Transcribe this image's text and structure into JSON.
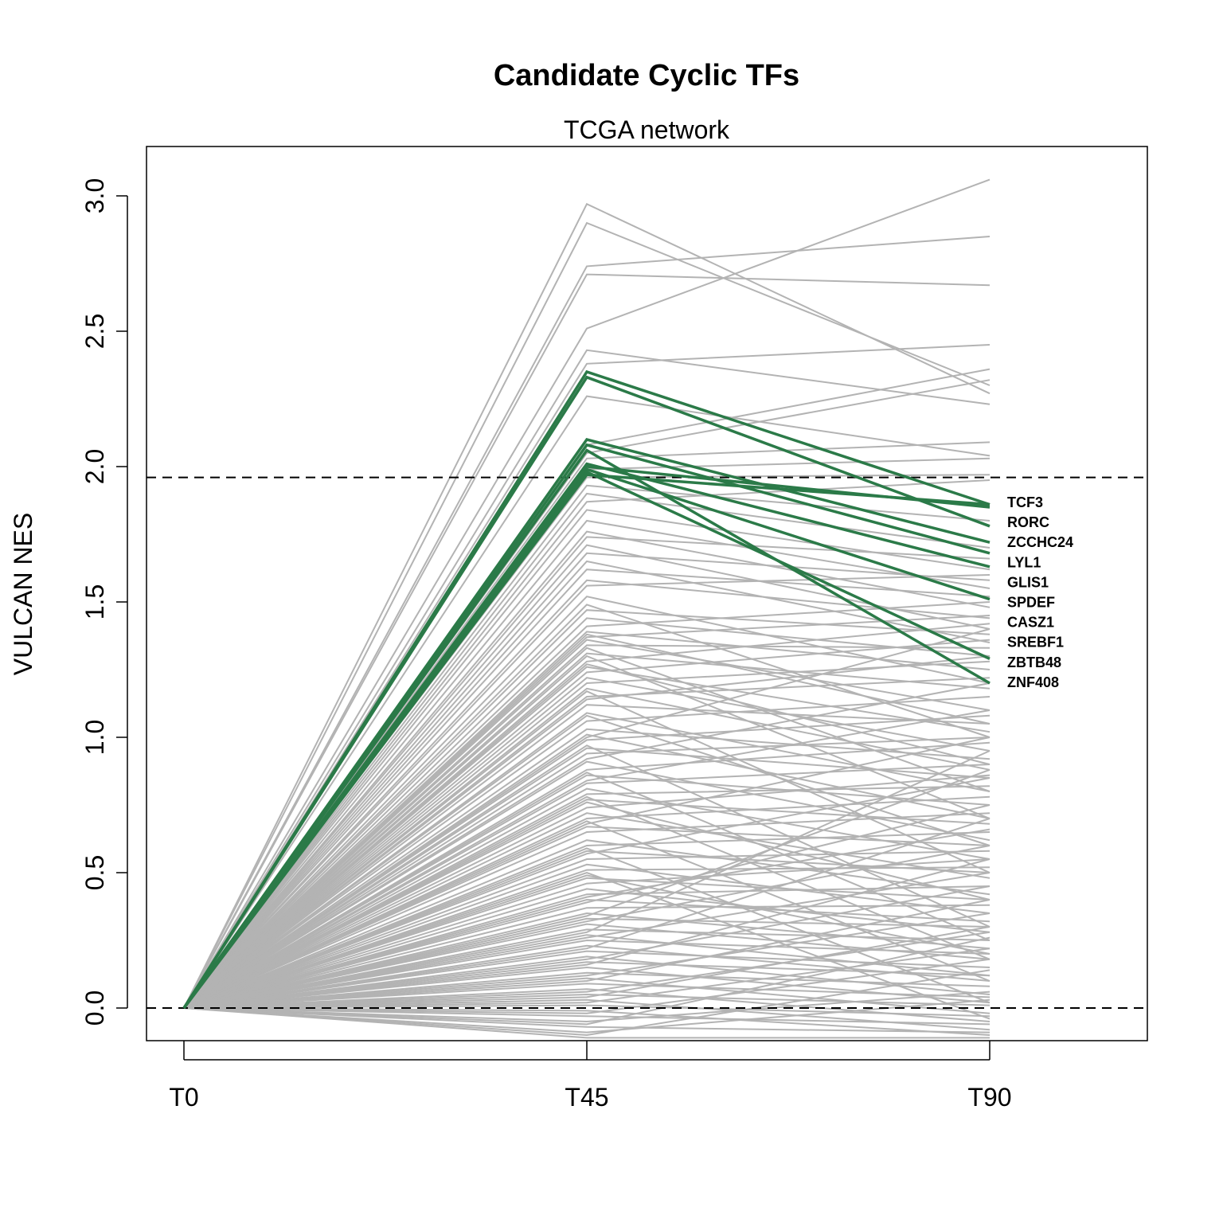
{
  "chart_data": {
    "type": "line",
    "title": "Candidate Cyclic TFs",
    "subtitle": "TCGA network",
    "ylabel": "VULCAN NES",
    "xlabel": "",
    "x": [
      "T0",
      "T45",
      "T90"
    ],
    "ylim": [
      -0.12,
      3.2
    ],
    "yticks": [
      "0.0",
      "0.5",
      "1.0",
      "1.5",
      "2.0",
      "2.5",
      "3.0"
    ],
    "ytick_values": [
      0,
      0.5,
      1.0,
      1.5,
      2.0,
      2.5,
      3.0
    ],
    "reference_lines": [
      {
        "y": 0.0,
        "style": "dashed"
      },
      {
        "y": 1.96,
        "style": "dashed"
      }
    ],
    "grid": false,
    "colors": {
      "background_series": "#b3b3b3",
      "highlight_series": "#2b7a48",
      "reference_line": "#000000"
    },
    "highlighted_series": [
      {
        "name": "TCF3",
        "values": [
          0,
          2.35,
          1.86
        ]
      },
      {
        "name": "RORC",
        "values": [
          0,
          2.33,
          1.78
        ]
      },
      {
        "name": "ZCCHC24",
        "values": [
          0,
          2.1,
          1.72
        ]
      },
      {
        "name": "LYL1",
        "values": [
          0,
          2.08,
          1.68
        ]
      },
      {
        "name": "GLIS1",
        "values": [
          0,
          2.01,
          1.63
        ]
      },
      {
        "name": "SPDEF",
        "values": [
          0,
          1.99,
          1.51
        ]
      },
      {
        "name": "CASZ1",
        "values": [
          0,
          2.0,
          1.85
        ]
      },
      {
        "name": "SREBF1",
        "values": [
          0,
          1.98,
          1.29
        ]
      },
      {
        "name": "ZBTB48",
        "values": [
          0,
          2.06,
          1.2
        ]
      },
      {
        "name": "ZNF408",
        "values": [
          0,
          1.97,
          1.86
        ]
      }
    ],
    "label_order": [
      "TCF3",
      "RORC",
      "ZCCHC24",
      "LYL1",
      "GLIS1",
      "SPDEF",
      "CASZ1",
      "SREBF1",
      "ZBTB48",
      "ZNF408"
    ],
    "background_series": [
      [
        0,
        2.97,
        2.27
      ],
      [
        0,
        2.9,
        2.3
      ],
      [
        0,
        2.74,
        2.85
      ],
      [
        0,
        2.71,
        2.67
      ],
      [
        0,
        2.51,
        3.06
      ],
      [
        0,
        2.43,
        2.23
      ],
      [
        0,
        2.38,
        2.45
      ],
      [
        0,
        2.26,
        2.04
      ],
      [
        0,
        2.08,
        2.36
      ],
      [
        0,
        2.05,
        2.32
      ],
      [
        0,
        2.03,
        2.09
      ],
      [
        0,
        1.99,
        2.03
      ],
      [
        0,
        1.96,
        1.97
      ],
      [
        0,
        1.93,
        1.8
      ],
      [
        0,
        1.9,
        1.7
      ],
      [
        0,
        1.87,
        1.95
      ],
      [
        0,
        1.84,
        1.62
      ],
      [
        0,
        1.8,
        1.55
      ],
      [
        0,
        1.76,
        1.48
      ],
      [
        0,
        1.74,
        1.66
      ],
      [
        0,
        1.71,
        1.4
      ],
      [
        0,
        1.68,
        1.58
      ],
      [
        0,
        1.65,
        1.35
      ],
      [
        0,
        1.62,
        1.52
      ],
      [
        0,
        1.58,
        1.44
      ],
      [
        0,
        1.47,
        1.38
      ],
      [
        0,
        1.44,
        1.3
      ],
      [
        0,
        1.41,
        1.5
      ],
      [
        0,
        1.39,
        1.25
      ],
      [
        0,
        1.37,
        1.45
      ],
      [
        0,
        1.36,
        1.1
      ],
      [
        0,
        1.34,
        1.33
      ],
      [
        0,
        1.31,
        1.18
      ],
      [
        0,
        1.28,
        1.42
      ],
      [
        0,
        1.26,
        1.02
      ],
      [
        0,
        1.24,
        1.36
      ],
      [
        0,
        1.22,
        0.95
      ],
      [
        0,
        1.2,
        1.28
      ],
      [
        0,
        1.18,
        0.88
      ],
      [
        0,
        1.15,
        1.22
      ],
      [
        0,
        1.12,
        1.05
      ],
      [
        0,
        1.09,
        0.8
      ],
      [
        0,
        1.06,
        1.15
      ],
      [
        0,
        1.03,
        0.92
      ],
      [
        0,
        1.01,
        0.7
      ],
      [
        0,
        0.99,
        1.08
      ],
      [
        0,
        0.96,
        0.85
      ],
      [
        0,
        0.94,
        1.0
      ],
      [
        0,
        0.91,
        0.62
      ],
      [
        0,
        0.88,
        0.98
      ],
      [
        0,
        0.86,
        0.75
      ],
      [
        0,
        0.83,
        0.9
      ],
      [
        0,
        0.81,
        0.55
      ],
      [
        0,
        0.79,
        0.82
      ],
      [
        0,
        0.77,
        0.68
      ],
      [
        0,
        0.74,
        0.86
      ],
      [
        0,
        0.72,
        0.48
      ],
      [
        0,
        0.7,
        0.78
      ],
      [
        0,
        0.67,
        0.6
      ],
      [
        0,
        0.65,
        0.72
      ],
      [
        0,
        0.62,
        0.42
      ],
      [
        0,
        0.6,
        0.65
      ],
      [
        0,
        0.58,
        0.5
      ],
      [
        0,
        0.55,
        0.58
      ],
      [
        0,
        0.53,
        0.35
      ],
      [
        0,
        0.51,
        0.52
      ],
      [
        0,
        0.48,
        0.4
      ],
      [
        0,
        0.46,
        0.55
      ],
      [
        0,
        0.44,
        0.28
      ],
      [
        0,
        0.42,
        0.45
      ],
      [
        0,
        0.4,
        0.32
      ],
      [
        0,
        0.37,
        0.38
      ],
      [
        0,
        0.35,
        0.22
      ],
      [
        0,
        0.33,
        0.3
      ],
      [
        0,
        0.31,
        0.18
      ],
      [
        0,
        0.29,
        0.25
      ],
      [
        0,
        0.27,
        0.12
      ],
      [
        0,
        0.25,
        0.2
      ],
      [
        0,
        0.23,
        0.1
      ],
      [
        0,
        0.21,
        0.15
      ],
      [
        0,
        0.19,
        0.05
      ],
      [
        0,
        0.17,
        0.12
      ],
      [
        0,
        0.15,
        0.02
      ],
      [
        0,
        0.13,
        0.08
      ],
      [
        0,
        0.11,
        -0.02
      ],
      [
        0,
        0.09,
        0.04
      ],
      [
        0,
        0.07,
        -0.05
      ],
      [
        0,
        0.05,
        0.01
      ],
      [
        0,
        0.03,
        -0.08
      ],
      [
        0,
        0.01,
        -0.03
      ],
      [
        0,
        -0.01,
        -0.1
      ],
      [
        0,
        -0.03,
        -0.06
      ],
      [
        0,
        -0.05,
        0.06
      ],
      [
        0,
        -0.07,
        -0.09
      ],
      [
        0,
        -0.09,
        0.03
      ],
      [
        0,
        -0.11,
        -0.11
      ],
      [
        0,
        1.56,
        1.6
      ],
      [
        0,
        1.52,
        1.2
      ],
      [
        0,
        1.49,
        1.0
      ],
      [
        0,
        1.3,
        0.7
      ],
      [
        0,
        1.14,
        1.3
      ],
      [
        0,
        1.0,
        1.4
      ],
      [
        0,
        0.92,
        1.2
      ],
      [
        0,
        0.84,
        1.1
      ],
      [
        0,
        0.76,
        0.4
      ],
      [
        0,
        0.68,
        1.0
      ],
      [
        0,
        0.57,
        0.85
      ],
      [
        0,
        0.49,
        0.2
      ],
      [
        0,
        0.39,
        0.75
      ],
      [
        0,
        0.32,
        0.6
      ],
      [
        0,
        0.26,
        0.5
      ],
      [
        0,
        0.18,
        0.45
      ],
      [
        0,
        0.12,
        0.35
      ],
      [
        0,
        0.06,
        0.28
      ],
      [
        0,
        0.02,
        0.22
      ],
      [
        0,
        1.08,
        0.6
      ],
      [
        0,
        1.17,
        0.5
      ],
      [
        0,
        1.27,
        0.9
      ],
      [
        0,
        1.33,
        0.8
      ],
      [
        0,
        1.38,
        1.05
      ],
      [
        0,
        0.97,
        0.3
      ],
      [
        0,
        0.87,
        0.25
      ],
      [
        0,
        0.78,
        0.18
      ],
      [
        0,
        0.69,
        0.1
      ],
      [
        0,
        0.59,
        0.02
      ],
      [
        0,
        0.5,
        -0.04
      ],
      [
        0,
        0.41,
        0.66
      ],
      [
        0,
        0.34,
        0.88
      ],
      [
        0,
        0.28,
        0.95
      ],
      [
        0,
        0.22,
        0.7
      ],
      [
        0,
        0.16,
        0.55
      ],
      [
        0,
        0.1,
        0.4
      ],
      [
        0,
        0.04,
        0.3
      ],
      [
        0,
        -0.02,
        0.18
      ],
      [
        0,
        -0.06,
        0.26
      ],
      [
        0,
        -0.1,
        0.14
      ]
    ]
  }
}
